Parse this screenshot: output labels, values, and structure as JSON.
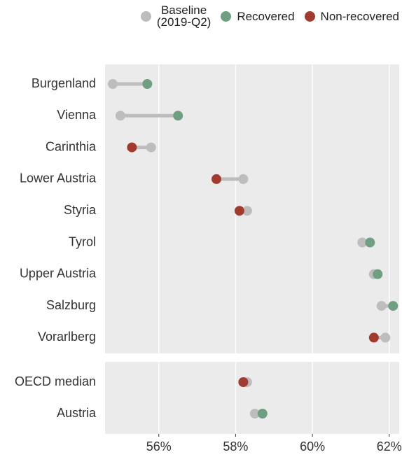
{
  "chart_data": [
    {
      "type": "dumbbell",
      "categories": [
        "Burgenland",
        "Vienna",
        "Carinthia",
        "Lower Austria",
        "Styria",
        "Tyrol",
        "Upper Austria",
        "Salzburg",
        "Vorarlberg"
      ],
      "series": [
        {
          "name": "Baseline\n(2019-Q2)",
          "color": "#bdbdbd",
          "values": [
            54.8,
            55.0,
            55.8,
            58.2,
            58.3,
            61.3,
            61.6,
            61.8,
            61.9
          ]
        },
        {
          "name": "Recovered",
          "color": "#6f9e82",
          "values": [
            55.7,
            56.5,
            null,
            null,
            null,
            61.5,
            61.7,
            62.1,
            null
          ]
        },
        {
          "name": "Non-recovered",
          "color": "#a23b2f",
          "values": [
            null,
            null,
            55.3,
            57.5,
            58.1,
            null,
            null,
            null,
            61.6
          ]
        }
      ],
      "xlim": [
        54.6,
        62.26
      ],
      "xticks": [
        56,
        58,
        60,
        62
      ],
      "grid": true
    },
    {
      "type": "dumbbell",
      "categories": [
        "OECD median",
        "Austria"
      ],
      "series": [
        {
          "color": "#bdbdbd",
          "values": [
            58.3,
            58.5
          ]
        },
        {
          "color": "#6f9e82",
          "values": [
            null,
            58.7
          ]
        },
        {
          "color": "#a23b2f",
          "values": [
            58.2,
            null
          ]
        }
      ],
      "xlim": [
        54.6,
        62.26
      ],
      "xticks": [
        {
          "value": 56,
          "label": "56%"
        },
        {
          "value": 58,
          "label": "58%"
        },
        {
          "value": 60,
          "label": "60%"
        },
        {
          "value": 62,
          "label": "62%"
        }
      ],
      "grid": true
    }
  ]
}
